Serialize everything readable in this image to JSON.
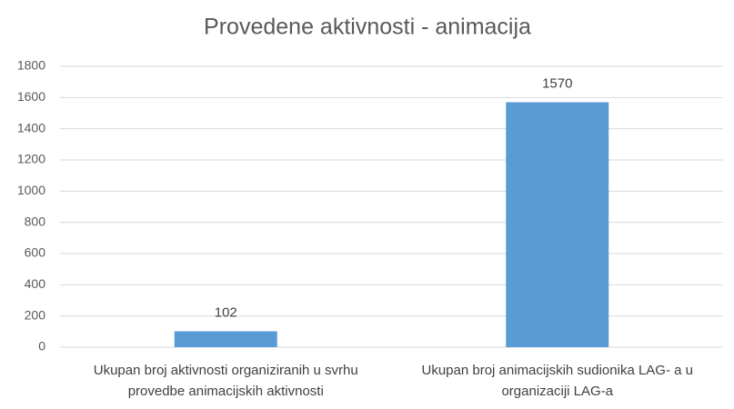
{
  "chart_data": {
    "type": "bar",
    "title": "Provedene aktivnosti - animacija",
    "categories": [
      "Ukupan broj aktivnosti organiziranih u svrhu provedbe animacijskih aktivnosti",
      "Ukupan broj animacijskih sudionika LAG- a u organizaciji LAG-a"
    ],
    "values": [
      102,
      1570
    ],
    "color": "#5b9bd5",
    "ylim": [
      0,
      1800
    ],
    "yticks": [
      0,
      200,
      400,
      600,
      800,
      1000,
      1200,
      1400,
      1600,
      1800
    ],
    "grid": true
  }
}
